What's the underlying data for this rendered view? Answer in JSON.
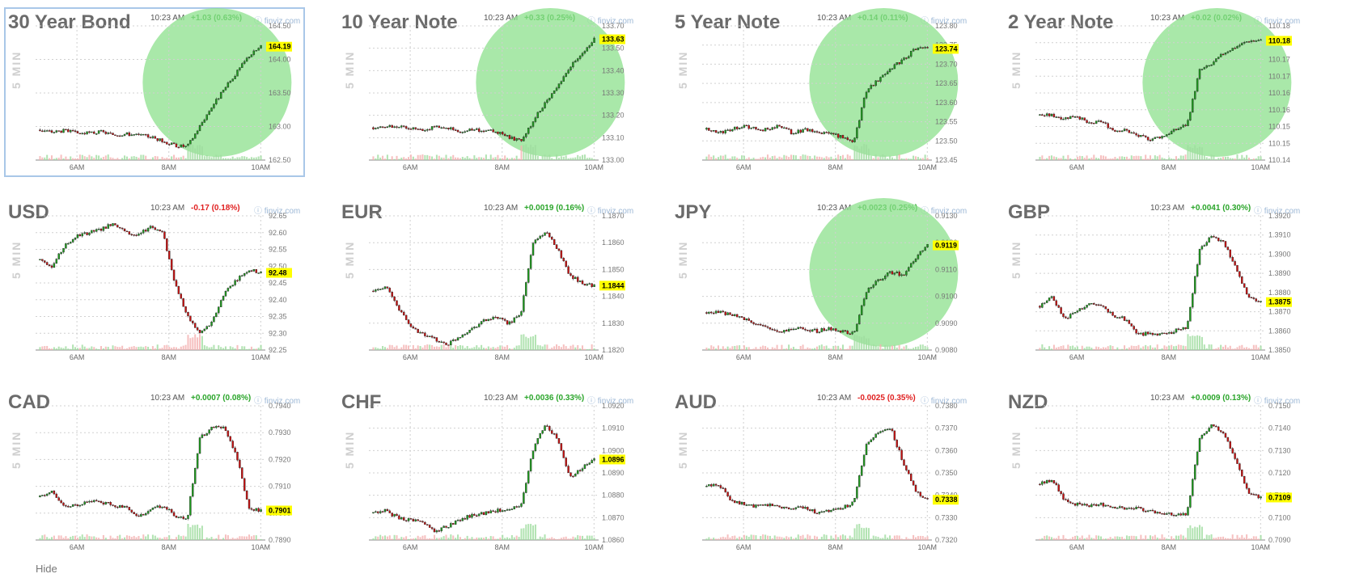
{
  "footer_text": "Hide",
  "colors": {
    "up": "#1f9e1f",
    "down": "#cc1111",
    "highlight": "#8ce08c",
    "last_price_bg": "#ffff00",
    "grid": "#d0d0d0"
  },
  "chart_data": [
    {
      "type": "candlestick",
      "title": "30 Year Bond",
      "time": "10:23 AM",
      "change": "+1.03 (0.63%)",
      "direction": "up",
      "source": "finviz.com",
      "ylabel": "5 MIN",
      "x_ticks": [
        "6AM",
        "8AM",
        "10AM"
      ],
      "y_ticks": [
        "164.50",
        "164.00",
        "163.50",
        "163.00",
        "162.50"
      ],
      "ylim": [
        162.5,
        164.5
      ],
      "last": 164.19,
      "last_label": "164.19",
      "path": [
        162.95,
        162.92,
        162.94,
        162.9,
        162.9,
        162.92,
        162.88,
        162.89,
        162.87,
        162.85,
        162.78,
        162.72,
        162.7,
        163.0,
        163.3,
        163.55,
        163.8,
        164.05,
        164.19
      ],
      "highlight": true
    },
    {
      "type": "candlestick",
      "title": "10 Year Note",
      "time": "10:23 AM",
      "change": "+0.33 (0.25%)",
      "direction": "up",
      "source": "finviz.com",
      "ylabel": "5 MIN",
      "x_ticks": [
        "6AM",
        "8AM",
        "10AM"
      ],
      "y_ticks": [
        "133.70",
        "133.50",
        "133.40",
        "133.30",
        "133.20",
        "133.10",
        "133.00"
      ],
      "ylim": [
        133.0,
        133.7
      ],
      "last": 133.63,
      "last_label": "133.63",
      "path": [
        133.17,
        133.17,
        133.18,
        133.17,
        133.16,
        133.17,
        133.17,
        133.15,
        133.16,
        133.15,
        133.15,
        133.12,
        133.1,
        133.2,
        133.3,
        133.38,
        133.48,
        133.56,
        133.63
      ],
      "highlight": true
    },
    {
      "type": "candlestick",
      "title": "5 Year Note",
      "time": "10:23 AM",
      "change": "+0.14 (0.11%)",
      "direction": "up",
      "source": "finviz.com",
      "ylabel": "5 MIN",
      "x_ticks": [
        "6AM",
        "8AM",
        "10AM"
      ],
      "y_ticks": [
        "123.80",
        "123.75",
        "123.70",
        "123.65",
        "123.60",
        "123.55",
        "123.50",
        "123.45"
      ],
      "ylim": [
        123.45,
        123.8
      ],
      "last": 123.74,
      "last_label": "123.74",
      "path": [
        123.53,
        123.52,
        123.53,
        123.54,
        123.53,
        123.53,
        123.54,
        123.52,
        123.53,
        123.52,
        123.52,
        123.51,
        123.5,
        123.63,
        123.66,
        123.69,
        123.71,
        123.74,
        123.74
      ],
      "highlight": true
    },
    {
      "type": "candlestick",
      "title": "2 Year Note",
      "time": "10:23 AM",
      "change": "+0.02 (0.02%)",
      "direction": "up",
      "source": "finviz.com",
      "ylabel": "5 MIN",
      "x_ticks": [
        "6AM",
        "8AM",
        "10AM"
      ],
      "y_ticks": [
        "110.18",
        "110.18",
        "110.17",
        "110.17",
        "110.16",
        "110.16",
        "110.15",
        "110.15",
        "110.14"
      ],
      "ylim": [
        110.14,
        110.185
      ],
      "last": 110.18,
      "last_label": "110.18",
      "path": [
        110.155,
        110.155,
        110.154,
        110.155,
        110.152,
        110.153,
        110.15,
        110.15,
        110.148,
        110.147,
        110.148,
        110.15,
        110.152,
        110.17,
        110.172,
        110.176,
        110.178,
        110.18,
        110.18
      ],
      "highlight": true
    },
    {
      "type": "candlestick",
      "title": "USD",
      "time": "10:23 AM",
      "change": "-0.17 (0.18%)",
      "direction": "down",
      "source": "finviz.com",
      "ylabel": "5 MIN",
      "x_ticks": [
        "6AM",
        "8AM",
        "10AM"
      ],
      "y_ticks": [
        "92.65",
        "92.60",
        "92.55",
        "92.50",
        "92.45",
        "92.40",
        "92.35",
        "92.30",
        "92.25"
      ],
      "ylim": [
        92.25,
        92.65
      ],
      "last": 92.48,
      "last_label": "92.48",
      "path": [
        92.52,
        92.5,
        92.56,
        92.59,
        92.6,
        92.61,
        92.63,
        92.6,
        92.59,
        92.62,
        92.6,
        92.45,
        92.35,
        92.3,
        92.33,
        92.42,
        92.46,
        92.49,
        92.48
      ],
      "highlight": false
    },
    {
      "type": "candlestick",
      "title": "EUR",
      "time": "10:23 AM",
      "change": "+0.0019 (0.16%)",
      "direction": "up",
      "source": "finviz.com",
      "ylabel": "5 MIN",
      "x_ticks": [
        "6AM",
        "8AM",
        "10AM"
      ],
      "y_ticks": [
        "1.1870",
        "1.1860",
        "1.1850",
        "1.1840",
        "1.1830",
        "1.1820"
      ],
      "ylim": [
        1.182,
        1.187
      ],
      "last": 1.1844,
      "last_label": "1.1844",
      "path": [
        1.1842,
        1.1844,
        1.1836,
        1.1829,
        1.1826,
        1.1824,
        1.1822,
        1.1825,
        1.1828,
        1.1831,
        1.1832,
        1.183,
        1.1833,
        1.186,
        1.1864,
        1.1858,
        1.1848,
        1.1845,
        1.1844
      ],
      "highlight": false
    },
    {
      "type": "candlestick",
      "title": "JPY",
      "time": "10:23 AM",
      "change": "+0.0023 (0.25%)",
      "direction": "up",
      "source": "finviz.com",
      "ylabel": "5 MIN",
      "x_ticks": [
        "6AM",
        "8AM",
        "10AM"
      ],
      "y_ticks": [
        "0.9130",
        "0.9120",
        "0.9110",
        "0.9100",
        "0.9090",
        "0.9080"
      ],
      "ylim": [
        0.908,
        0.913
      ],
      "last": 0.9119,
      "last_label": "0.9119",
      "path": [
        0.9094,
        0.9094,
        0.9093,
        0.9092,
        0.909,
        0.9088,
        0.9087,
        0.9088,
        0.9088,
        0.9087,
        0.9088,
        0.9087,
        0.9086,
        0.9102,
        0.9106,
        0.9109,
        0.9108,
        0.9114,
        0.9119
      ],
      "highlight": true
    },
    {
      "type": "candlestick",
      "title": "GBP",
      "time": "10:23 AM",
      "change": "+0.0041 (0.30%)",
      "direction": "up",
      "source": "finviz.com",
      "ylabel": "5 MIN",
      "x_ticks": [
        "6AM",
        "8AM",
        "10AM"
      ],
      "y_ticks": [
        "1.3920",
        "1.3910",
        "1.3900",
        "1.3890",
        "1.3880",
        "1.3870",
        "1.3860",
        "1.3850"
      ],
      "ylim": [
        1.385,
        1.392
      ],
      "last": 1.3875,
      "last_label": "1.3875",
      "path": [
        1.3873,
        1.3878,
        1.3866,
        1.387,
        1.3874,
        1.3873,
        1.3868,
        1.3866,
        1.3858,
        1.3859,
        1.3858,
        1.386,
        1.3862,
        1.3902,
        1.391,
        1.3906,
        1.3892,
        1.3878,
        1.3875
      ],
      "highlight": false
    },
    {
      "type": "candlestick",
      "title": "CAD",
      "time": "10:23 AM",
      "change": "+0.0007 (0.08%)",
      "direction": "up",
      "source": "finviz.com",
      "ylabel": "5 MIN",
      "x_ticks": [
        "6AM",
        "8AM",
        "10AM"
      ],
      "y_ticks": [
        "0.7940",
        "0.7930",
        "0.7920",
        "0.7910",
        "0.7900",
        "0.7890"
      ],
      "ylim": [
        0.789,
        0.794
      ],
      "last": 0.7901,
      "last_label": "0.7901",
      "path": [
        0.7906,
        0.7908,
        0.7902,
        0.7903,
        0.7905,
        0.7904,
        0.7903,
        0.7902,
        0.7899,
        0.7901,
        0.7903,
        0.7899,
        0.7898,
        0.7928,
        0.7932,
        0.7932,
        0.7922,
        0.7902,
        0.7901
      ],
      "highlight": false
    },
    {
      "type": "candlestick",
      "title": "CHF",
      "time": "10:23 AM",
      "change": "+0.0036 (0.33%)",
      "direction": "up",
      "source": "finviz.com",
      "ylabel": "5 MIN",
      "x_ticks": [
        "6AM",
        "8AM",
        "10AM"
      ],
      "y_ticks": [
        "1.0920",
        "1.0910",
        "1.0900",
        "1.0890",
        "1.0880",
        "1.0870",
        "1.0860"
      ],
      "ylim": [
        1.086,
        1.092
      ],
      "last": 1.0896,
      "last_label": "1.0896",
      "path": [
        1.0872,
        1.0873,
        1.087,
        1.0869,
        1.0868,
        1.0864,
        1.0866,
        1.0869,
        1.0871,
        1.0872,
        1.0873,
        1.0874,
        1.0875,
        1.09,
        1.0912,
        1.0905,
        1.0888,
        1.0892,
        1.0896
      ],
      "highlight": false
    },
    {
      "type": "candlestick",
      "title": "AUD",
      "time": "10:23 AM",
      "change": "-0.0025 (0.35%)",
      "direction": "down",
      "source": "finviz.com",
      "ylabel": "5 MIN",
      "x_ticks": [
        "6AM",
        "8AM",
        "10AM"
      ],
      "y_ticks": [
        "0.7380",
        "0.7370",
        "0.7360",
        "0.7350",
        "0.7340",
        "0.7330",
        "0.7320"
      ],
      "ylim": [
        0.732,
        0.738
      ],
      "last": 0.7338,
      "last_label": "0.7338",
      "path": [
        0.7344,
        0.7345,
        0.7338,
        0.7336,
        0.7335,
        0.7336,
        0.7335,
        0.7334,
        0.7335,
        0.7332,
        0.7333,
        0.7334,
        0.7337,
        0.7362,
        0.7368,
        0.737,
        0.7355,
        0.7342,
        0.7338
      ],
      "highlight": false
    },
    {
      "type": "candlestick",
      "title": "NZD",
      "time": "10:23 AM",
      "change": "+0.0009 (0.13%)",
      "direction": "up",
      "source": "finviz.com",
      "ylabel": "5 MIN",
      "x_ticks": [
        "6AM",
        "8AM",
        "10AM"
      ],
      "y_ticks": [
        "0.7150",
        "0.7140",
        "0.7130",
        "0.7120",
        "0.7110",
        "0.7100",
        "0.7090"
      ],
      "ylim": [
        0.709,
        0.715
      ],
      "last": 0.7109,
      "last_label": "0.7109",
      "path": [
        0.7115,
        0.7117,
        0.7108,
        0.7106,
        0.7105,
        0.7106,
        0.7105,
        0.7104,
        0.7104,
        0.7103,
        0.7102,
        0.7101,
        0.7102,
        0.7135,
        0.7141,
        0.7138,
        0.7125,
        0.7111,
        0.7109
      ],
      "highlight": false
    }
  ]
}
